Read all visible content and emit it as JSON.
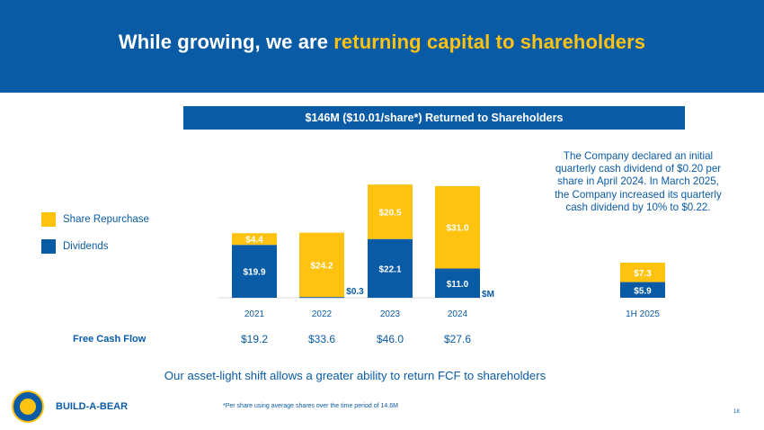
{
  "header": {
    "title_prefix": "While growing, we are ",
    "title_highlight": "returning capital to shareholders"
  },
  "banner": "$146M ($10.01/share*) Returned to Shareholders",
  "note": "The Company declared an initial quarterly cash dividend of $0.20 per share in April 2024. In March 2025, the Company increased its quarterly cash dividend by 10% to $0.22.",
  "legend": [
    {
      "label": "Share Repurchase",
      "color": "#ffc20e"
    },
    {
      "label": "Dividends",
      "color": "#0a5ba6"
    }
  ],
  "chart_data": {
    "type": "bar",
    "stacked": true,
    "categories": [
      "2021",
      "2022",
      "2023",
      "2024",
      "1H 2025"
    ],
    "series": [
      {
        "name": "Dividends",
        "color": "#0a5ba6",
        "values": [
          19.9,
          0.3,
          22.1,
          11.0,
          5.9
        ],
        "labels": [
          "$19.9",
          "$0.3",
          "$22.1",
          "$11.0",
          "$5.9"
        ]
      },
      {
        "name": "Share Repurchase",
        "color": "#ffc20e",
        "values": [
          4.4,
          24.2,
          20.5,
          31.0,
          7.3
        ],
        "labels": [
          "$4.4",
          "$24.2",
          "$20.5",
          "$31.0",
          "$7.3"
        ]
      }
    ],
    "unit_label": "$M",
    "ylim": [
      0,
      44
    ]
  },
  "fcf": {
    "label": "Free Cash Flow",
    "values": [
      "$19.2",
      "$33.6",
      "$46.0",
      "$27.6"
    ]
  },
  "subline": "Our asset-light shift allows a greater ability to return FCF to shareholders",
  "footnote": "*Per share using average shares over the time period of 14.6M",
  "brand": "BUILD-A-BEAR",
  "page_number": "18",
  "colors": {
    "primary": "#0a5ba6",
    "accent": "#ffc20e"
  }
}
